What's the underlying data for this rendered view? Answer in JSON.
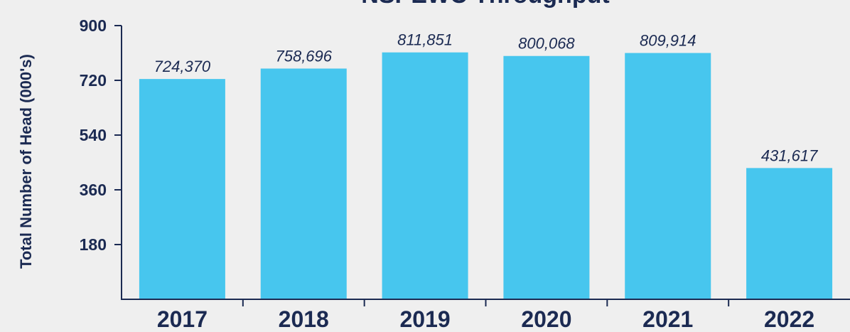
{
  "chart_data": {
    "type": "bar",
    "title": "NSPEWC Throughput",
    "ylabel": "Total Number of Head (000's)",
    "xlabel": "",
    "categories": [
      "2017",
      "2018",
      "2019",
      "2020",
      "2021",
      "2022"
    ],
    "values": [
      724370,
      758696,
      811851,
      800068,
      809914,
      431617
    ],
    "value_labels": [
      "724,370",
      "758,696",
      "811,851",
      "800,068",
      "809,914",
      "431,617"
    ],
    "yticks": [
      180,
      360,
      540,
      720,
      900
    ],
    "ytick_labels": [
      "180",
      "360",
      "540",
      "720",
      "900"
    ],
    "ylim": [
      0,
      900
    ],
    "grid": false,
    "legend": "none",
    "colors": {
      "bar": "#47c6ee",
      "text": "#1b2a52",
      "background": "#efefef"
    }
  }
}
